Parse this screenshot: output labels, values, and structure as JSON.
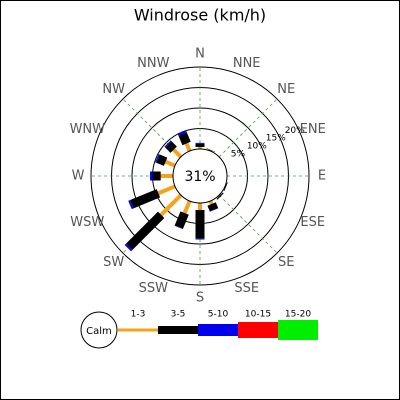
{
  "chart_data": {
    "type": "windrose",
    "title": "Windrose (km/h)",
    "categories": [
      "N",
      "NNE",
      "NE",
      "ENE",
      "E",
      "ESE",
      "SE",
      "SSE",
      "S",
      "SSW",
      "SW",
      "WSW",
      "W",
      "WNW",
      "NW",
      "NNW"
    ],
    "calm": {
      "value": 31,
      "label": "31%"
    },
    "calm_label": "Calm",
    "rlim": [
      0,
      20
    ],
    "rticks": [
      {
        "value": 5,
        "label": "5%"
      },
      {
        "value": 10,
        "label": "10%"
      },
      {
        "value": 15,
        "label": "15%"
      },
      {
        "value": 20,
        "label": "20%"
      }
    ],
    "grid": true,
    "series": [
      {
        "name": "1-3",
        "color": "#f5a31a",
        "values": [
          0.5,
          0.2,
          0,
          0,
          0,
          0.1,
          0.2,
          0.8,
          1.7,
          3.2,
          6.8,
          4.4,
          3,
          2.5,
          2.5,
          2
        ]
      },
      {
        "name": "3-5",
        "color": "#000000",
        "values": [
          0.8,
          0.1,
          0,
          0,
          0,
          0.2,
          0.3,
          1.5,
          7,
          3.7,
          11,
          7,
          2,
          2,
          1.8,
          2.5
        ]
      },
      {
        "name": "5-10",
        "color": "#0000ee",
        "values": [
          0.2,
          0,
          0,
          0,
          0,
          0,
          0,
          0.1,
          0.2,
          0.1,
          0.5,
          0.5,
          0.6,
          0.3,
          0.3,
          0.5
        ]
      },
      {
        "name": "10-15",
        "color": "#ff0000",
        "values": [
          0,
          0,
          0,
          0,
          0,
          0,
          0,
          0,
          0,
          0,
          0,
          0,
          0,
          0,
          0,
          0
        ]
      },
      {
        "name": "15-20",
        "color": "#00ee00",
        "values": [
          0,
          0,
          0,
          0,
          0,
          0,
          0,
          0,
          0,
          0,
          0,
          0,
          0,
          0,
          0,
          0
        ]
      }
    ]
  }
}
